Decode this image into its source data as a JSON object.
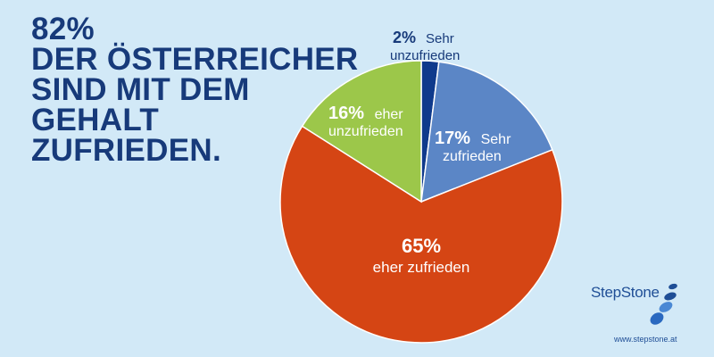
{
  "headline": {
    "lines": [
      "82%",
      "DER ÖSTERREICHER",
      "SIND MIT DEM",
      "GEHALT",
      "ZUFRIEDEN."
    ]
  },
  "colors": {
    "background": "#d2e9f7",
    "headline": "#173a7a",
    "label_light": "#ffffff",
    "label_dark": "#173a7a"
  },
  "chart_data": {
    "type": "pie",
    "title": "",
    "slices": [
      {
        "pct": "2%",
        "value": 2,
        "label_lines": [
          "Sehr",
          "unzufrieden"
        ],
        "color": "#0f3a8c"
      },
      {
        "pct": "17%",
        "value": 17,
        "label_lines": [
          "Sehr",
          "zufrieden"
        ],
        "color": "#5b86c6"
      },
      {
        "pct": "65%",
        "value": 65,
        "label_lines": [
          "eher zufrieden"
        ],
        "color": "#d54514"
      },
      {
        "pct": "16%",
        "value": 16,
        "label_lines": [
          "eher",
          "unzufrieden"
        ],
        "color": "#9cc74a"
      }
    ],
    "start_angle_deg": 0,
    "direction": "clockwise"
  },
  "brand": {
    "logo_text": "StepStone",
    "url": "www.stepstone.at",
    "logo_icon": "stepstone-pebbles-icon"
  }
}
